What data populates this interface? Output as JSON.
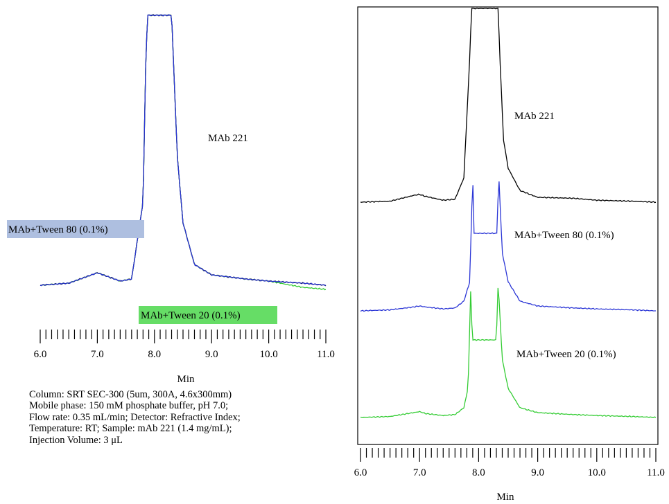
{
  "chart_data": [
    {
      "type": "line",
      "layout": "overlaid",
      "xlabel": "Min",
      "ylabel": "",
      "xlim": [
        6.0,
        11.0
      ],
      "x_tick_labels": [
        "6.0",
        "7.0",
        "8.0",
        "9.0",
        "10.0",
        "11.0"
      ],
      "grid": false,
      "annotations": [
        {
          "key": "mab221",
          "text": "MAb 221"
        },
        {
          "key": "tween80",
          "text": "MAb+Tween 80 (0.1%)",
          "highlight": "#aebfe0"
        },
        {
          "key": "tween20",
          "text": "MAb+Tween 20 (0.1%)",
          "highlight": "#66dd66"
        }
      ],
      "series": [
        {
          "key": "mab221",
          "color": "#000000",
          "x": [
            6.0,
            6.5,
            6.9,
            7.0,
            7.1,
            7.4,
            7.6,
            7.8,
            7.85,
            7.88,
            8.3,
            8.33,
            8.4,
            8.5,
            8.7,
            9.0,
            9.6,
            10.0,
            10.6,
            11.0
          ],
          "y": [
            0,
            0.01,
            0.05,
            0.06,
            0.05,
            0.02,
            0.03,
            0.4,
            1.1,
            1.3,
            1.3,
            1.1,
            0.62,
            0.3,
            0.1,
            0.05,
            0.03,
            0.02,
            0.01,
            0
          ]
        },
        {
          "key": "tween80",
          "color": "#2b36d6",
          "x": [
            6.0,
            6.5,
            6.9,
            7.0,
            7.1,
            7.4,
            7.6,
            7.8,
            7.85,
            7.88,
            8.3,
            8.33,
            8.4,
            8.5,
            8.7,
            9.0,
            9.6,
            10.0,
            10.6,
            11.0
          ],
          "y": [
            0,
            0.01,
            0.05,
            0.06,
            0.05,
            0.02,
            0.03,
            0.4,
            1.1,
            1.3,
            1.3,
            1.1,
            0.62,
            0.3,
            0.1,
            0.05,
            0.03,
            0.02,
            0.01,
            0
          ]
        },
        {
          "key": "tween20",
          "color": "#33cc33",
          "x": [
            6.0,
            6.5,
            6.9,
            7.0,
            7.1,
            7.4,
            7.6,
            7.8,
            7.85,
            7.88,
            8.3,
            8.33,
            8.4,
            8.5,
            8.7,
            9.0,
            9.6,
            10.0,
            10.6,
            11.0
          ],
          "y": [
            0,
            0.01,
            0.05,
            0.06,
            0.05,
            0.02,
            0.03,
            0.4,
            1.1,
            1.3,
            1.3,
            1.1,
            0.62,
            0.3,
            0.1,
            0.05,
            0.03,
            0.02,
            -0.01,
            -0.02
          ]
        }
      ]
    },
    {
      "type": "line",
      "layout": "stacked",
      "xlabel": "Min",
      "ylabel": "",
      "xlim": [
        6.0,
        11.0
      ],
      "x_tick_labels": [
        "6.0",
        "7.0",
        "8.0",
        "9.0",
        "10.0",
        "11.0"
      ],
      "grid": false,
      "frame": true,
      "annotations": [
        {
          "key": "mab221",
          "text": "MAb 221"
        },
        {
          "key": "tween80",
          "text": "MAb+Tween 80 (0.1%)"
        },
        {
          "key": "tween20",
          "text": "MAb+Tween 20 (0.1%)"
        }
      ],
      "series": [
        {
          "key": "mab221",
          "color": "#000000",
          "x": [
            6.0,
            6.5,
            6.9,
            7.0,
            7.1,
            7.4,
            7.6,
            7.75,
            7.85,
            7.88,
            8.33,
            8.36,
            8.42,
            8.5,
            8.7,
            9.0,
            9.6,
            10.0,
            10.6,
            11.0
          ],
          "y": [
            0,
            0.01,
            0.07,
            0.08,
            0.06,
            0.02,
            0.03,
            0.25,
            1.5,
            2.0,
            2.0,
            1.5,
            0.65,
            0.35,
            0.12,
            0.05,
            0.04,
            0.02,
            0.01,
            0
          ]
        },
        {
          "key": "tween80",
          "color": "#2b36d6",
          "x": [
            6.0,
            6.5,
            6.9,
            7.0,
            7.1,
            7.4,
            7.6,
            7.75,
            7.85,
            7.9,
            7.92,
            8.31,
            8.34,
            8.4,
            8.5,
            8.7,
            9.0,
            9.6,
            10.0,
            10.6,
            11.0
          ],
          "y": [
            0,
            0.01,
            0.04,
            0.05,
            0.04,
            0.02,
            0.03,
            0.1,
            0.3,
            1.42,
            0.8,
            0.8,
            1.42,
            0.6,
            0.3,
            0.1,
            0.05,
            0.03,
            0.02,
            0.01,
            0
          ]
        },
        {
          "key": "tween20",
          "color": "#33cc33",
          "x": [
            6.0,
            6.5,
            6.9,
            7.0,
            7.1,
            7.4,
            7.6,
            7.75,
            7.82,
            7.87,
            7.89,
            8.3,
            8.33,
            8.4,
            8.5,
            8.7,
            9.0,
            9.6,
            10.0,
            10.6,
            11.0
          ],
          "y": [
            0,
            0.01,
            0.05,
            0.06,
            0.04,
            0.02,
            0.03,
            0.1,
            0.3,
            1.4,
            0.8,
            0.8,
            1.4,
            0.6,
            0.3,
            0.1,
            0.05,
            0.03,
            0.02,
            0.01,
            0
          ]
        }
      ]
    }
  ],
  "conditions": [
    "Column: SRT SEC-300 (5um, 300A, 4.6x300mm)",
    "Mobile phase: 150 mM phosphate buffer, pH 7.0;",
    "Flow rate: 0.35 mL/min; Detector: Refractive Index;",
    "Temperature: RT; Sample: mAb 221 (1.4 mg/mL);",
    "Injection Volume: 3 μL"
  ]
}
